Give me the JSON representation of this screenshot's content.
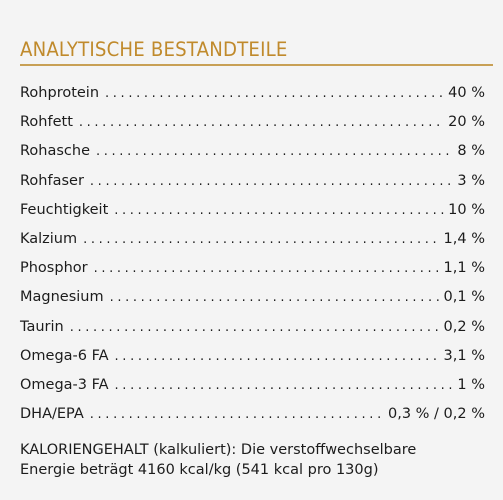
{
  "heading": "ANALYTISCHE BESTANDTEILE",
  "rows": [
    {
      "label": "Rohprotein",
      "value": "40 %"
    },
    {
      "label": "Rohfett",
      "value": "20 %"
    },
    {
      "label": "Rohasche",
      "value": "8 %"
    },
    {
      "label": "Rohfaser",
      "value": "3 %"
    },
    {
      "label": "Feuchtigkeit",
      "value": "10 %"
    },
    {
      "label": "Kalzium",
      "value": "1,4 %"
    },
    {
      "label": "Phosphor",
      "value": "1,1 %"
    },
    {
      "label": "Magnesium",
      "value": "0,1 %"
    },
    {
      "label": "Taurin",
      "value": "0,2 %"
    },
    {
      "label": "Omega-6 FA",
      "value": "3,1 %"
    },
    {
      "label": "Omega-3 FA",
      "value": "1 %"
    },
    {
      "label": "DHA/EPA",
      "value": "0,3 % / 0,2 %"
    }
  ],
  "calorie": {
    "line1": "KALORIENGEHALT (kalkuliert): Die verstoffwechselbare",
    "line2": "Energie beträgt 4160 kcal/kg (541 kcal pro 130g)"
  },
  "colors": {
    "accent": "#c08a2c",
    "rule": "#c8a055",
    "text": "#1c1c1c",
    "background": "#f4f4f4"
  }
}
